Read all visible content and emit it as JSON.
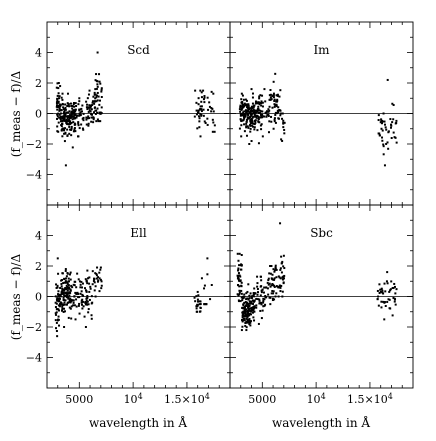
{
  "figure": {
    "ylabel": "(f_meas − f)/Δ",
    "xlabel": "wavelength in Å"
  },
  "chart_data": {
    "type": "scatter",
    "layout": "2x2 grid, shared axes",
    "xlim": [
      2000,
      19000
    ],
    "ylim": [
      -6,
      6
    ],
    "x_ticks": [
      {
        "value": 5000,
        "label": "5000"
      },
      {
        "value": 10000,
        "label": "10^4"
      },
      {
        "value": 15000,
        "label": "1.5×10^4"
      }
    ],
    "y_ticks": [
      {
        "value": -4,
        "label": "−4"
      },
      {
        "value": -2,
        "label": "−2"
      },
      {
        "value": 0,
        "label": "0"
      },
      {
        "value": 2,
        "label": "2"
      },
      {
        "value": 4,
        "label": "4"
      }
    ],
    "reference_line_y": 0,
    "panels": [
      {
        "label": "Scd",
        "groups": [
          {
            "x_range": [
              2900,
              3300
            ],
            "mean": 0.6,
            "spread": 0.7,
            "n": 45,
            "ymin": -1.2,
            "ymax": 2.0
          },
          {
            "x_range": [
              3300,
              4600
            ],
            "mean": -0.3,
            "spread": 0.55,
            "n": 150,
            "ymin": -3.4,
            "ymax": 1.3
          },
          {
            "x_range": [
              4600,
              5400
            ],
            "mean": -0.1,
            "spread": 0.5,
            "n": 40,
            "ymin": -1.5,
            "ymax": 1.0
          },
          {
            "x_range": [
              5600,
              6300
            ],
            "mean": 0.2,
            "spread": 0.45,
            "n": 35,
            "ymin": -0.8,
            "ymax": 1.5
          },
          {
            "x_range": [
              6300,
              7100
            ],
            "mean": 0.9,
            "spread": 0.8,
            "n": 50,
            "ymin": -0.5,
            "ymax": 4.0
          },
          {
            "x_range": [
              15700,
              17300
            ],
            "mean": 0.2,
            "spread": 0.65,
            "n": 45,
            "ymin": -1.5,
            "ymax": 1.5
          },
          {
            "x_range": [
              17300,
              17600
            ],
            "mean": -0.2,
            "spread": 0.7,
            "n": 6,
            "ymin": -1.2,
            "ymax": 1.3
          }
        ]
      },
      {
        "label": "Im",
        "groups": [
          {
            "x_range": [
              2900,
              3300
            ],
            "mean": 0.2,
            "spread": 0.6,
            "n": 40,
            "ymin": -1.5,
            "ymax": 1.3
          },
          {
            "x_range": [
              3300,
              4700
            ],
            "mean": 0.0,
            "spread": 0.55,
            "n": 150,
            "ymin": -2.0,
            "ymax": 1.6
          },
          {
            "x_range": [
              4700,
              5700
            ],
            "mean": 0.2,
            "spread": 0.55,
            "n": 45,
            "ymin": -1.5,
            "ymax": 1.6
          },
          {
            "x_range": [
              5700,
              6700
            ],
            "mean": 0.6,
            "spread": 0.6,
            "n": 50,
            "ymin": -1.0,
            "ymax": 2.6
          },
          {
            "x_range": [
              6700,
              7100
            ],
            "mean": -0.8,
            "spread": 0.5,
            "n": 10,
            "ymin": -1.8,
            "ymax": 0.0
          },
          {
            "x_range": [
              15800,
              17500
            ],
            "mean": -1.0,
            "spread": 0.8,
            "n": 45,
            "ymin": -3.4,
            "ymax": 2.2
          }
        ]
      },
      {
        "label": "Ell",
        "groups": [
          {
            "x_range": [
              2800,
              3200
            ],
            "mean": -0.4,
            "spread": 0.9,
            "n": 40,
            "ymin": -2.6,
            "ymax": 2.5
          },
          {
            "x_range": [
              3200,
              4300
            ],
            "mean": 0.2,
            "spread": 0.7,
            "n": 120,
            "ymin": -2.0,
            "ymax": 1.8
          },
          {
            "x_range": [
              4300,
              5300
            ],
            "mean": 0.1,
            "spread": 0.6,
            "n": 40,
            "ymin": -1.5,
            "ymax": 1.5
          },
          {
            "x_range": [
              5300,
              6200
            ],
            "mean": 0.0,
            "spread": 0.7,
            "n": 40,
            "ymin": -2.0,
            "ymax": 1.7
          },
          {
            "x_range": [
              6200,
              7100
            ],
            "mean": 1.1,
            "spread": 0.5,
            "n": 25,
            "ymin": 0.0,
            "ymax": 1.9
          },
          {
            "x_range": [
              15700,
              16300
            ],
            "mean": -0.5,
            "spread": 0.3,
            "n": 20,
            "ymin": -1.0,
            "ymax": 0.3
          },
          {
            "x_range": [
              16300,
              17500
            ],
            "mean": 0.6,
            "spread": 0.8,
            "n": 10,
            "ymin": -0.5,
            "ymax": 2.5
          }
        ]
      },
      {
        "label": "Sbc",
        "groups": [
          {
            "x_range": [
              2700,
              3100
            ],
            "mean": 1.2,
            "spread": 0.9,
            "n": 40,
            "ymin": -0.3,
            "ymax": 2.8
          },
          {
            "x_range": [
              3100,
              4300
            ],
            "mean": -0.8,
            "spread": 0.6,
            "n": 150,
            "ymin": -2.2,
            "ymax": 0.8
          },
          {
            "x_range": [
              4300,
              5400
            ],
            "mean": 0.0,
            "spread": 0.6,
            "n": 45,
            "ymin": -1.8,
            "ymax": 1.3
          },
          {
            "x_range": [
              5500,
              6200
            ],
            "mean": 0.8,
            "spread": 0.6,
            "n": 35,
            "ymin": -0.5,
            "ymax": 2.0
          },
          {
            "x_range": [
              6200,
              7100
            ],
            "mean": 1.4,
            "spread": 0.8,
            "n": 40,
            "ymin": 0.0,
            "ymax": 4.8
          },
          {
            "x_range": [
              15700,
              17500
            ],
            "mean": 0.2,
            "spread": 0.6,
            "n": 45,
            "ymin": -1.5,
            "ymax": 1.6
          }
        ]
      }
    ]
  }
}
